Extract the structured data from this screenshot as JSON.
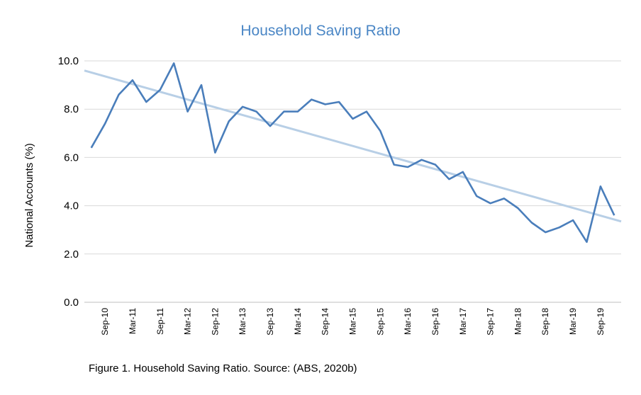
{
  "chart_data": {
    "type": "line",
    "title": "Household Saving Ratio",
    "xlabel": "",
    "ylabel": "National Accounts (%)",
    "ylim": [
      0,
      10
    ],
    "yticks": [
      "0.0",
      "2.0",
      "4.0",
      "6.0",
      "8.0",
      "10.0"
    ],
    "x_tick_labels": [
      "Sep-10",
      "Mar-11",
      "Sep-11",
      "Mar-12",
      "Sep-12",
      "Mar-13",
      "Sep-13",
      "Mar-14",
      "Sep-14",
      "Mar-15",
      "Sep-15",
      "Mar-16",
      "Sep-16",
      "Mar-17",
      "Sep-17",
      "Mar-18",
      "Sep-18",
      "Mar-19",
      "Sep-19"
    ],
    "grid": true,
    "legend": "none",
    "series": [
      {
        "color": "#4a7ebb",
        "values": [
          6.4,
          7.4,
          8.6,
          9.2,
          8.3,
          8.8,
          9.9,
          7.9,
          9.0,
          6.2,
          7.5,
          8.1,
          7.9,
          7.3,
          7.9,
          7.9,
          8.4,
          8.2,
          8.3,
          7.6,
          7.9,
          7.1,
          5.7,
          5.6,
          5.9,
          5.7,
          5.1,
          5.4,
          4.4,
          4.1,
          4.3,
          3.9,
          3.3,
          2.9,
          3.1,
          3.4,
          2.5,
          4.8,
          3.6
        ]
      },
      {
        "type": "trendline",
        "color": "#b8cfe6",
        "values": [
          9.6,
          3.35
        ]
      }
    ]
  },
  "caption": "Figure 1. Household Saving Ratio. Source: (ABS, 2020b)"
}
